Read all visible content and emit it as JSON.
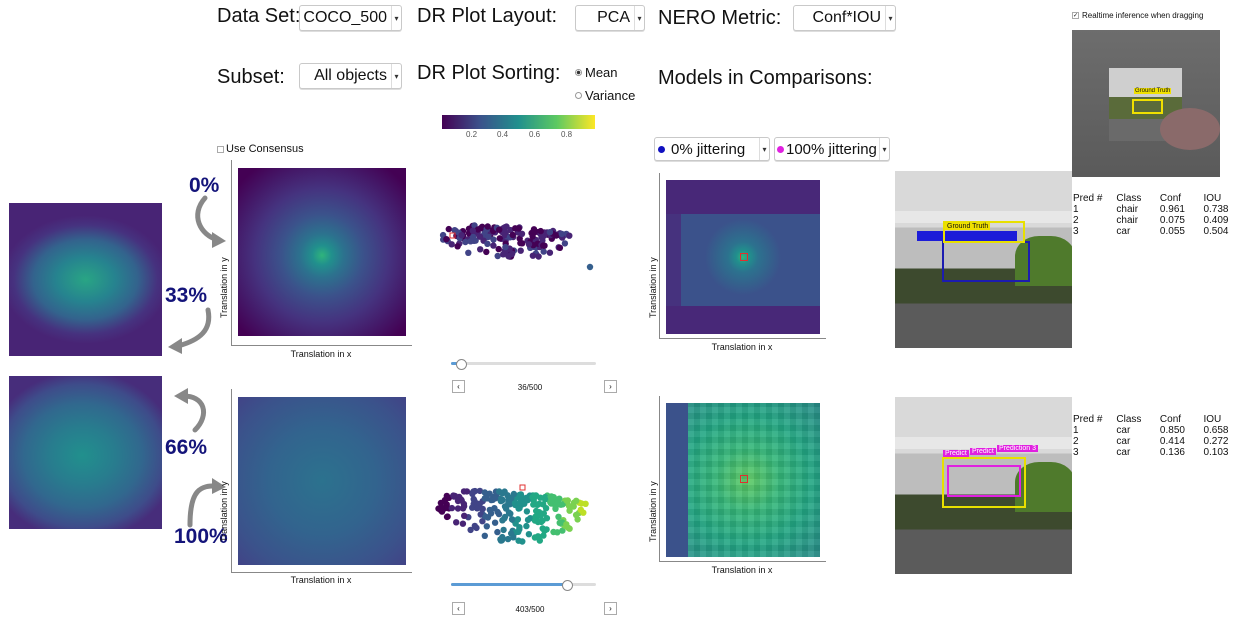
{
  "controls": {
    "dataset_label": "Data Set:",
    "dataset_value": "COCO_500",
    "layout_label": "DR Plot Layout:",
    "layout_value": "PCA",
    "metric_label": "NERO Metric:",
    "metric_value": "Conf*IOU",
    "subset_label": "Subset:",
    "subset_value": "All objects",
    "sorting_label": "DR Plot Sorting:",
    "sort_mean": "Mean",
    "sort_variance": "Variance",
    "models_label": "Models in Comparisons:",
    "model_a": "0% jittering",
    "model_b": "100% jittering",
    "consensus_label": "Use Consensus",
    "realtime_label": "Realtime inference when dragging"
  },
  "colorbar": {
    "ticks": [
      "0.2",
      "0.4",
      "0.6",
      "0.8"
    ]
  },
  "percentages": [
    "0%",
    "33%",
    "66%",
    "100%"
  ],
  "axes": {
    "x": "Translation in x",
    "y": "Translation in y"
  },
  "sliders": [
    {
      "counter": "36/500",
      "value": 36,
      "max": 500
    },
    {
      "counter": "403/500",
      "value": 403,
      "max": 500
    }
  ],
  "stepper": {
    "prev": "‹",
    "next": "›"
  },
  "photo_labels": {
    "ground_truth": "Ground Truth",
    "pred_short": "Predict",
    "pred_3": "Prediction 3"
  },
  "tables": {
    "headers": [
      "Pred #",
      "Class",
      "Conf",
      "IOU"
    ],
    "top": [
      [
        "1",
        "chair",
        "0.961",
        "0.738"
      ],
      [
        "2",
        "chair",
        "0.075",
        "0.409"
      ],
      [
        "3",
        "car",
        "0.055",
        "0.504"
      ]
    ],
    "bottom": [
      [
        "1",
        "car",
        "0.850",
        "0.658"
      ],
      [
        "2",
        "car",
        "0.414",
        "0.272"
      ],
      [
        "3",
        "car",
        "0.136",
        "0.103"
      ]
    ]
  },
  "colors": {
    "model_a": "#1010c0",
    "model_b": "#e020e0",
    "accent": "#14147a",
    "slider": "#5b9bd5"
  }
}
